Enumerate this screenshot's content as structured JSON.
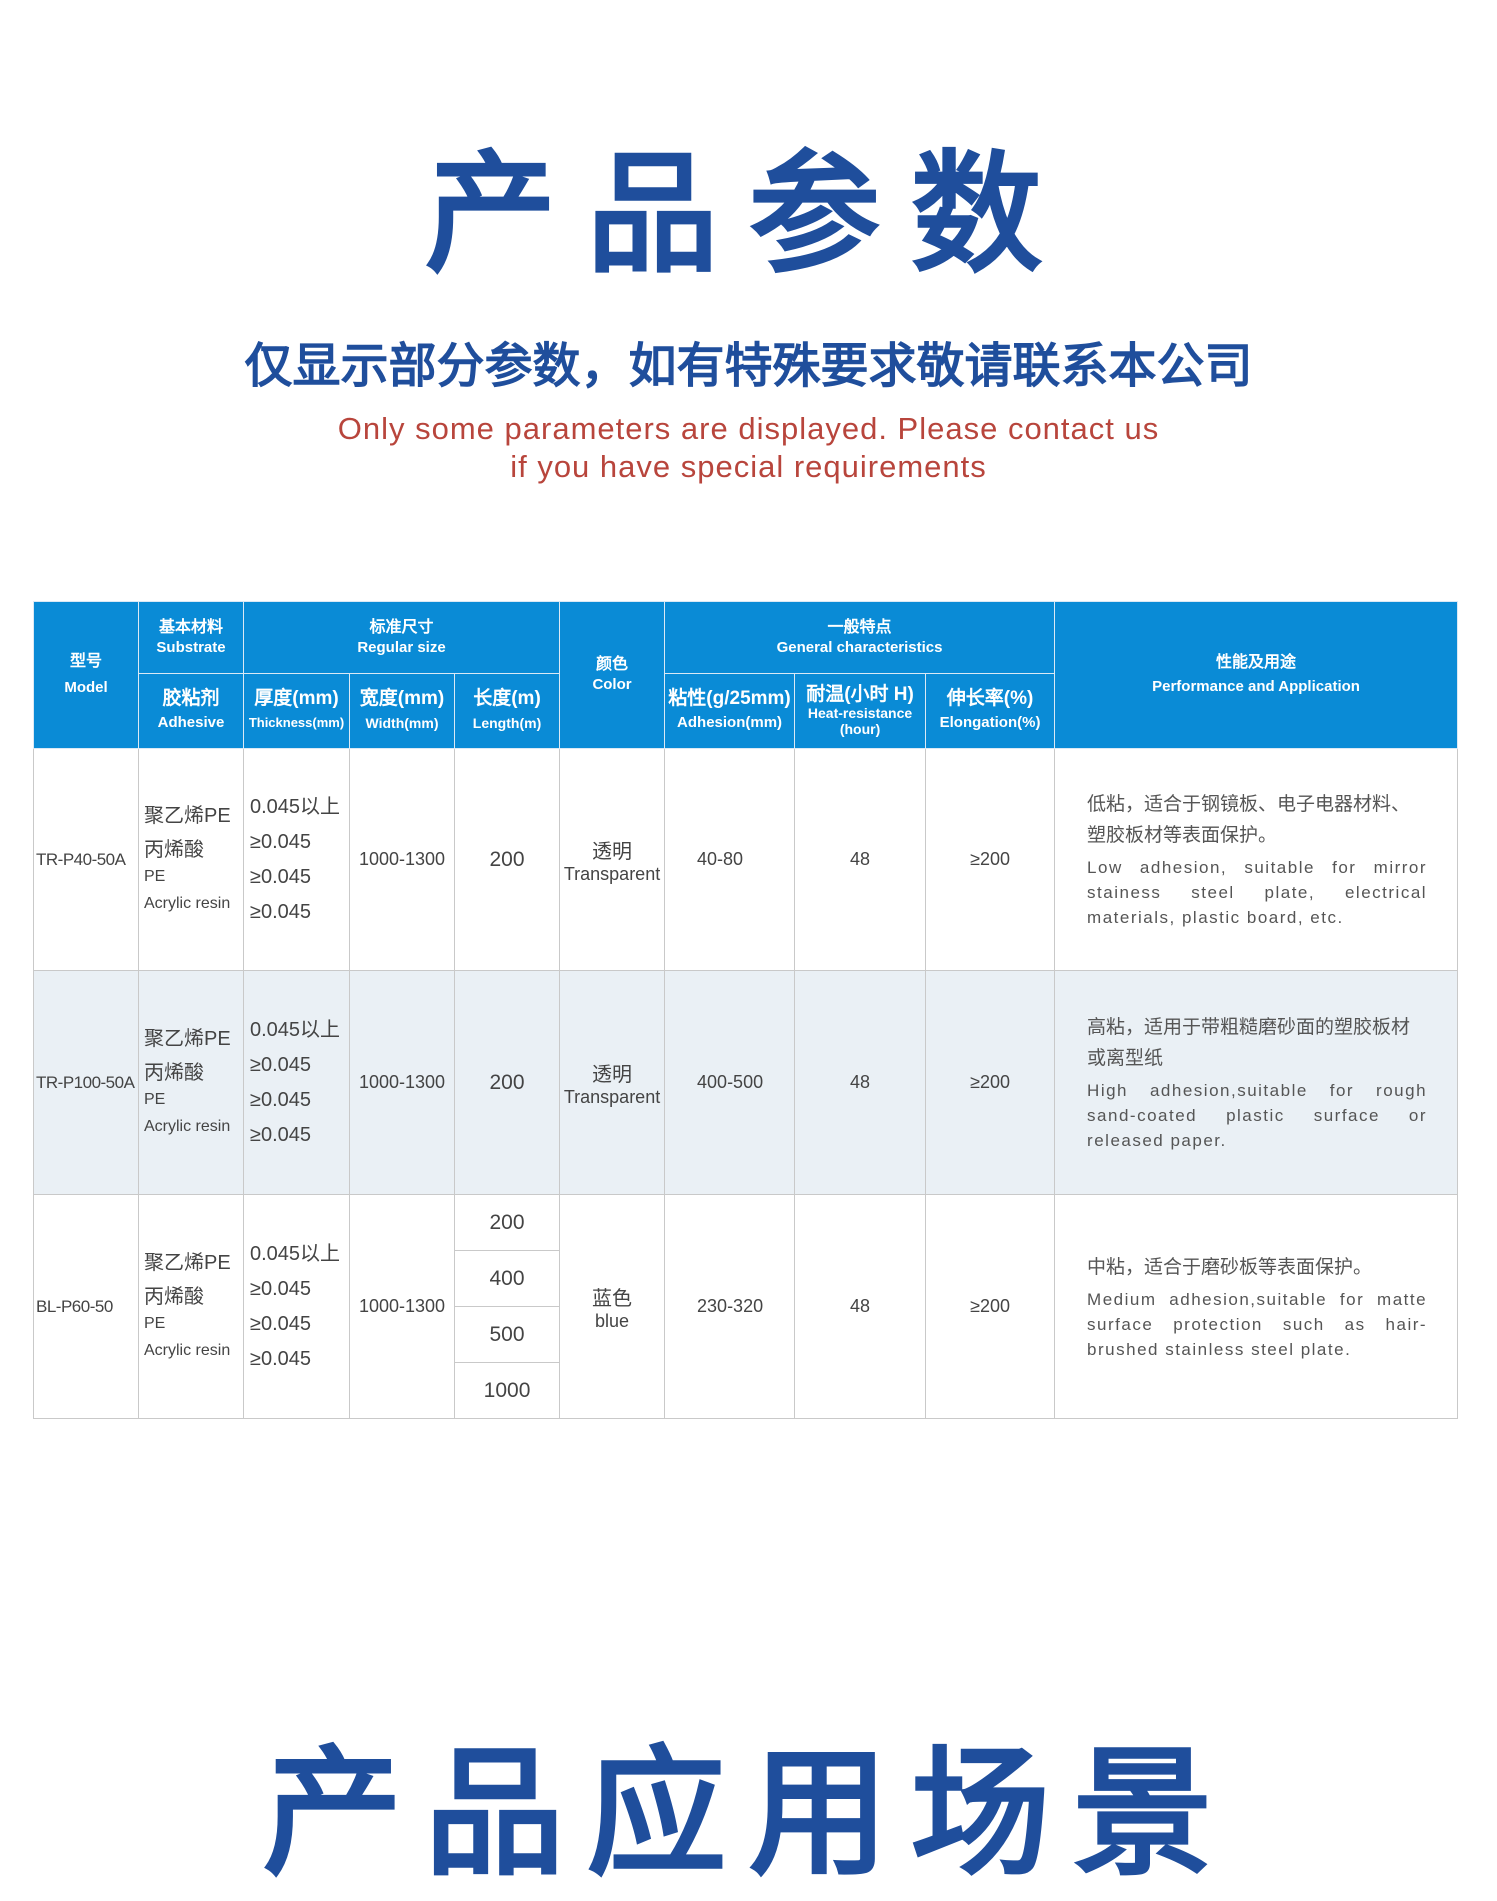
{
  "header": {
    "title": "产品参数",
    "subtitle_cn": "仅显示部分参数，如有特殊要求敬请联系本公司",
    "subtitle_en_line1": "Only some parameters are displayed. Please contact us",
    "subtitle_en_line2": "if you have special requirements"
  },
  "table": {
    "headers": {
      "model_cn": "型号",
      "model_en": "Model",
      "substrate_cn": "基本材料",
      "substrate_en": "Substrate",
      "adhesive_cn": "胶粘剂",
      "adhesive_en": "Adhesive",
      "size_cn": "标准尺寸",
      "size_en": "Regular size",
      "thickness_cn": "厚度(mm)",
      "thickness_en": "Thickness(mm)",
      "width_cn": "宽度(mm)",
      "width_en": "Width(mm)",
      "length_cn": "长度(m)",
      "length_en": "Length(m)",
      "color_cn": "颜色",
      "color_en": "Color",
      "general_cn": "一般特点",
      "general_en": "General characteristics",
      "adhesion_cn": "粘性(g/25mm)",
      "adhesion_en": "Adhesion(mm)",
      "heat_cn": "耐温(小时 H)",
      "heat_en": "Heat-resistance (hour)",
      "elong_cn": "伸长率(%)",
      "elong_en": "Elongation(%)",
      "perf_cn": "性能及用途",
      "perf_en": "Performance and Application"
    },
    "rows": [
      {
        "model": "TR-P40-50A",
        "sub1": "聚乙烯PE",
        "sub2": "丙烯酸",
        "sub3": "PE",
        "sub4": "Acrylic resin",
        "t1": "0.045以上",
        "t2": "≥0.045",
        "t3": "≥0.045",
        "t4": "≥0.045",
        "width": "1000-1300",
        "length": [
          "200"
        ],
        "color_cn": "透明",
        "color_en": "Transparent",
        "adhesion": "40-80",
        "heat": "48",
        "elong": "≥200",
        "perf_cn": "低粘，适合于钢镜板、电子电器材料、塑胶板材等表面保护。",
        "perf_en": "Low adhesion, suitable for mirror stainess steel plate, electrical materials, plastic board, etc."
      },
      {
        "model": "TR-P100-50A",
        "sub1": "聚乙烯PE",
        "sub2": "丙烯酸",
        "sub3": "PE",
        "sub4": "Acrylic resin",
        "t1": "0.045以上",
        "t2": "≥0.045",
        "t3": "≥0.045",
        "t4": "≥0.045",
        "width": "1000-1300",
        "length": [
          "200"
        ],
        "color_cn": "透明",
        "color_en": "Transparent",
        "adhesion": "400-500",
        "heat": "48",
        "elong": "≥200",
        "perf_cn": "高粘，适用于带粗糙磨砂面的塑胶板材或离型纸",
        "perf_en": "High adhesion,suitable for rough sand-coated plastic surface or released paper."
      },
      {
        "model": "BL-P60-50",
        "sub1": "聚乙烯PE",
        "sub2": "丙烯酸",
        "sub3": "PE",
        "sub4": "Acrylic resin",
        "t1": "0.045以上",
        "t2": "≥0.045",
        "t3": "≥0.045",
        "t4": "≥0.045",
        "width": "1000-1300",
        "length": [
          "200",
          "400",
          "500",
          "1000"
        ],
        "color_cn": "蓝色",
        "color_en": "blue",
        "adhesion": "230-320",
        "heat": "48",
        "elong": "≥200",
        "perf_cn": "中粘，适合于磨砂板等表面保护。",
        "perf_en": "Medium adhesion,suitable for matte surface protection such as hair-brushed stainless steel plate."
      }
    ]
  },
  "footer": {
    "title": "产品应用场景"
  },
  "colors": {
    "header_bg": "#0a8bd6",
    "title": "#1f4e9c",
    "subtitle_en": "#b8453c",
    "alt_row": "#eaf0f5"
  }
}
